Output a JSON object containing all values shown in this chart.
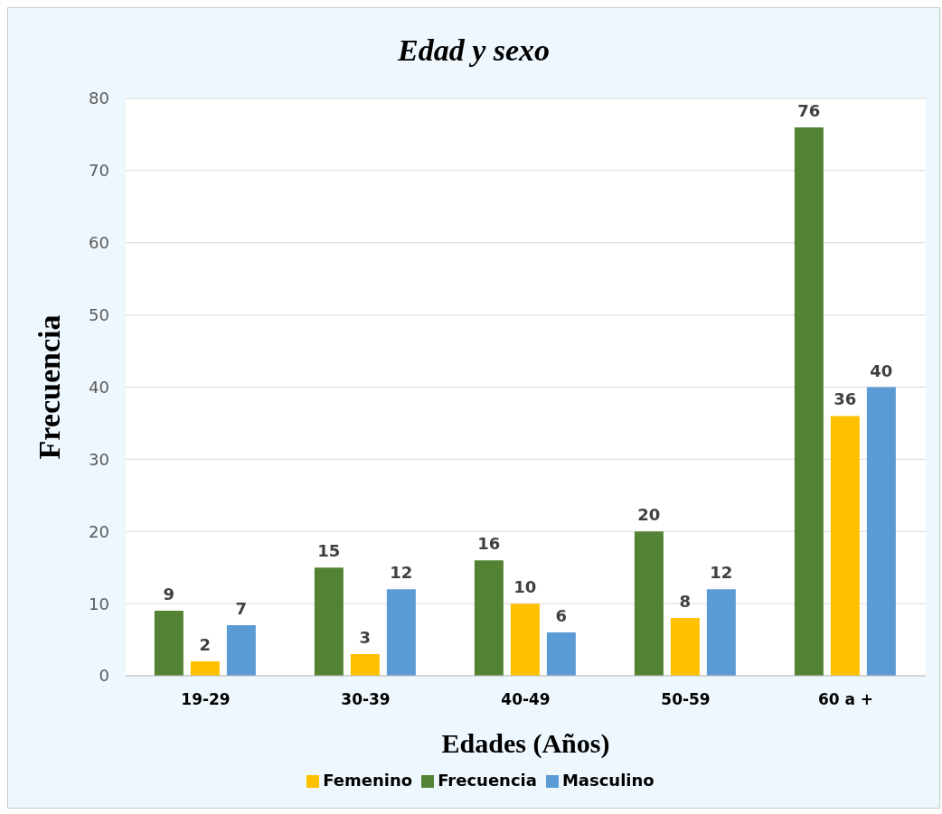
{
  "chart_data": {
    "type": "bar",
    "title": "Edad y sexo",
    "xlabel": "Edades (Años)",
    "ylabel": "Frecuencia",
    "categories": [
      "19-29",
      "30-39",
      "40-49",
      "50-59",
      "60 a +"
    ],
    "series": [
      {
        "name": "Frecuencia",
        "color": "#548235",
        "values": [
          9,
          15,
          16,
          20,
          76
        ]
      },
      {
        "name": "Femenino",
        "color": "#ffc000",
        "values": [
          2,
          3,
          10,
          8,
          36
        ]
      },
      {
        "name": "Masculino",
        "color": "#5b9bd5",
        "values": [
          7,
          12,
          6,
          12,
          40
        ]
      }
    ],
    "ylim": [
      0,
      80
    ],
    "yticks": [
      0,
      10,
      20,
      30,
      40,
      50,
      60,
      70,
      80
    ],
    "grid": "y",
    "legend": "bottom",
    "data_labels": true
  }
}
